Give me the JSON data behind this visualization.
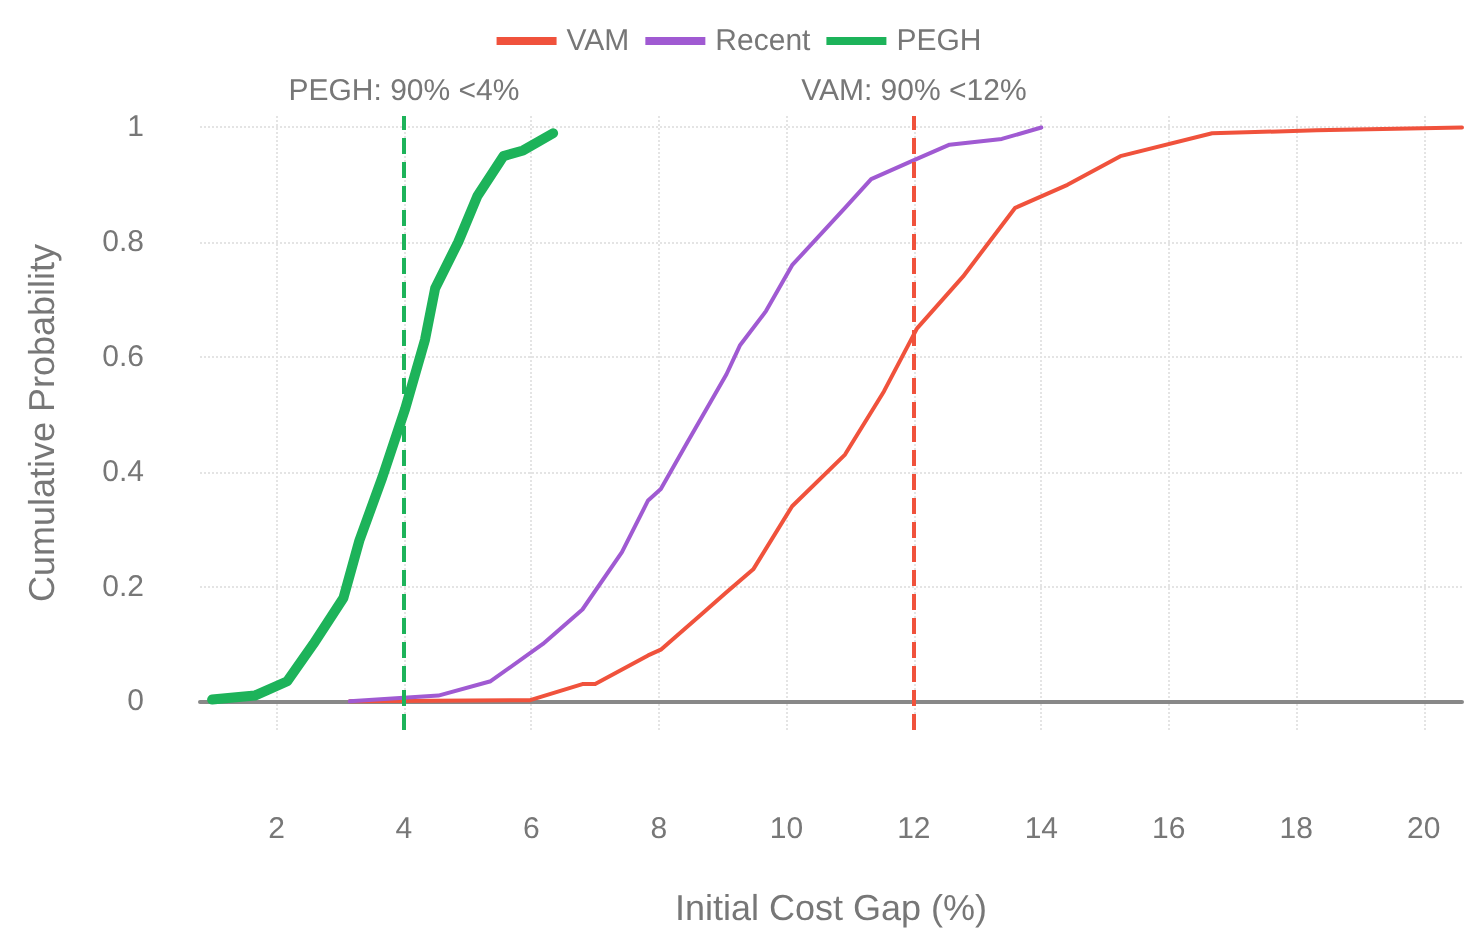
{
  "chart_data": {
    "type": "line",
    "xlabel": "Initial Cost Gap (%)",
    "ylabel": "Cumulative Probability",
    "xlim": [
      0.8,
      20.6
    ],
    "xticks": [
      2,
      4,
      6,
      8,
      10,
      12,
      14,
      16,
      18,
      20
    ],
    "ylim": [
      -0.05,
      1.02
    ],
    "yticks": [
      0,
      0.2,
      0.4,
      0.6,
      0.8,
      1
    ],
    "grid": true,
    "legend": "top",
    "marker": "none",
    "line_style": "solid",
    "series": [
      {
        "name": "VAM",
        "color": "#f0523c",
        "x": [
          3.15,
          5.98,
          6.8,
          7.0,
          7.83,
          8.03,
          8.65,
          9.06,
          9.48,
          10.09,
          10.92,
          11.53,
          12.05,
          12.77,
          13.59,
          14.41,
          15.24,
          16.68,
          18.32,
          20.6
        ],
        "values": [
          0,
          0.002,
          0.03,
          0.03,
          0.08,
          0.09,
          0.15,
          0.19,
          0.23,
          0.34,
          0.43,
          0.54,
          0.65,
          0.74,
          0.86,
          0.9,
          0.95,
          0.99,
          0.995,
          1
        ]
      },
      {
        "name": "Recent",
        "color": "#a05ad2",
        "x": [
          3.15,
          4.54,
          5.36,
          6.18,
          6.8,
          7.42,
          7.83,
          8.03,
          8.44,
          9.06,
          9.27,
          9.68,
          10.09,
          10.92,
          11.33,
          11.94,
          12.56,
          13.38,
          14.0
        ],
        "values": [
          0,
          0.01,
          0.035,
          0.1,
          0.16,
          0.26,
          0.35,
          0.37,
          0.45,
          0.57,
          0.62,
          0.68,
          0.76,
          0.86,
          0.91,
          0.94,
          0.97,
          0.98,
          1
        ]
      },
      {
        "name": "PEGH",
        "color": "#1db35a",
        "x": [
          0.99,
          1.66,
          2.17,
          2.58,
          3.05,
          3.3,
          3.66,
          4.02,
          4.33,
          4.49,
          4.85,
          5.15,
          5.56,
          5.87,
          6.34
        ],
        "values": [
          0.003,
          0.01,
          0.035,
          0.1,
          0.18,
          0.28,
          0.39,
          0.51,
          0.63,
          0.72,
          0.8,
          0.88,
          0.95,
          0.96,
          0.99
        ]
      }
    ],
    "ref_lines": [
      {
        "axis": "x",
        "value": 4,
        "label": "PEGH: 90% <4%",
        "color": "#1db35a",
        "line_style": "dashed"
      },
      {
        "axis": "x",
        "value": 12,
        "label": "VAM: 90% <12%",
        "color": "#f0523c",
        "line_style": "dashed"
      }
    ]
  }
}
